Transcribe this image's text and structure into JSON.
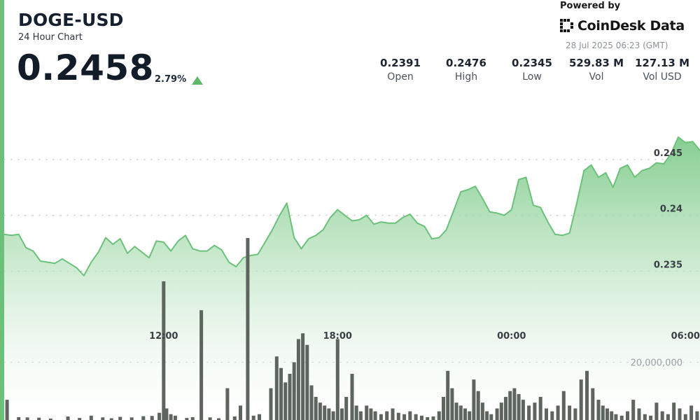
{
  "header": {
    "title": "DOGE-USD",
    "subtitle": "24 Hour Chart",
    "price": "0.2458",
    "change_pct": "2.79%",
    "change_direction": "up-arrow-icon"
  },
  "branding": {
    "powered_by": "Powered by",
    "brand": "CoinDesk Data",
    "timestamp": "28 Jul 2025 06:23 (GMT)",
    "logo_icon": "coindesk-logo-icon"
  },
  "stats": [
    {
      "value": "0.2391",
      "label": "Open"
    },
    {
      "value": "0.2476",
      "label": "High"
    },
    {
      "value": "0.2345",
      "label": "Low"
    },
    {
      "value": "529.83 M",
      "label": "Vol"
    },
    {
      "value": "127.13 M",
      "label": "Vol USD"
    }
  ],
  "colors": {
    "line": "#6cc17a",
    "area_top": "#7fcb8b",
    "area_bottom": "#ffffff",
    "volume_bar": "#5e645e",
    "grid": "#b8bcc0",
    "accent": "#5cb86a"
  },
  "chart_data": {
    "type": "area",
    "x_tick_labels": [
      "12:00",
      "18:00",
      "00:00",
      "06:00"
    ],
    "x_ticks_hours": [
      5.5,
      11.5,
      17.5,
      23.5
    ],
    "x_range_hours": [
      0,
      24.0
    ],
    "price_ylim": [
      0.2317,
      0.2505
    ],
    "price_ticks": [
      0.235,
      0.24,
      0.245
    ],
    "price_tick_labels": [
      "0.235",
      "0.24",
      "0.245"
    ],
    "volume_tick_label": "20,000,000",
    "volume_tick_value": 20000000,
    "volume_max": 63000000,
    "price_series": {
      "x": [
        0,
        0.25,
        0.5,
        0.75,
        1.0,
        1.25,
        1.5,
        1.75,
        2.0,
        2.25,
        2.5,
        2.75,
        3.0,
        3.25,
        3.5,
        3.75,
        4.0,
        4.25,
        4.5,
        4.75,
        5.0,
        5.25,
        5.5,
        5.75,
        6.0,
        6.25,
        6.5,
        6.75,
        7.0,
        7.25,
        7.5,
        7.75,
        8.0,
        8.25,
        8.5,
        8.75,
        9.0,
        9.25,
        9.5,
        9.75,
        10.0,
        10.25,
        10.5,
        10.75,
        11.0,
        11.25,
        11.5,
        11.75,
        12.0,
        12.25,
        12.5,
        12.75,
        13.0,
        13.25,
        13.5,
        13.75,
        14.0,
        14.25,
        14.5,
        14.75,
        15.0,
        15.25,
        15.5,
        15.75,
        16.0,
        16.25,
        16.5,
        16.75,
        17.0,
        17.25,
        17.5,
        17.75,
        18.0,
        18.25,
        18.5,
        18.75,
        19.0,
        19.25,
        19.5,
        19.75,
        20.0,
        20.25,
        20.5,
        20.75,
        21.0,
        21.25,
        21.5,
        21.75,
        22.0,
        22.25,
        22.5,
        22.75,
        23.0,
        23.25,
        23.5,
        23.75,
        24.0
      ],
      "y": [
        0.2383,
        0.2382,
        0.2383,
        0.2371,
        0.2368,
        0.2359,
        0.2358,
        0.2357,
        0.2361,
        0.2357,
        0.2353,
        0.2346,
        0.2358,
        0.2367,
        0.238,
        0.2374,
        0.2379,
        0.2366,
        0.2372,
        0.2367,
        0.2362,
        0.2377,
        0.2376,
        0.2368,
        0.2377,
        0.2382,
        0.237,
        0.2368,
        0.2368,
        0.2373,
        0.2369,
        0.2358,
        0.2354,
        0.2362,
        0.2364,
        0.2365,
        0.2376,
        0.2387,
        0.24,
        0.2411,
        0.238,
        0.237,
        0.2379,
        0.2382,
        0.2387,
        0.2398,
        0.2405,
        0.24,
        0.2395,
        0.2396,
        0.24,
        0.2392,
        0.2394,
        0.2393,
        0.2393,
        0.2398,
        0.2401,
        0.2393,
        0.239,
        0.2379,
        0.238,
        0.2387,
        0.2404,
        0.2421,
        0.2423,
        0.2426,
        0.2415,
        0.2403,
        0.2402,
        0.24,
        0.2405,
        0.2432,
        0.2434,
        0.2409,
        0.2407,
        0.2394,
        0.2383,
        0.2382,
        0.2384,
        0.2411,
        0.244,
        0.2445,
        0.2434,
        0.2438,
        0.2425,
        0.2442,
        0.2445,
        0.2434,
        0.244,
        0.2442,
        0.2447,
        0.2446,
        0.2455,
        0.247,
        0.2465,
        0.2466,
        0.2458
      ]
    },
    "volume_series": {
      "x": [
        0.1,
        0.5,
        0.8,
        1.2,
        1.6,
        2.2,
        2.6,
        3.0,
        3.4,
        3.7,
        4.0,
        4.4,
        4.8,
        5.1,
        5.35,
        5.5,
        5.6,
        5.75,
        5.9,
        6.3,
        6.5,
        6.8,
        7.1,
        7.4,
        7.7,
        7.95,
        8.15,
        8.4,
        8.6,
        8.8,
        9.2,
        9.4,
        9.55,
        9.7,
        9.85,
        10.0,
        10.15,
        10.3,
        10.45,
        10.6,
        10.75,
        10.9,
        11.05,
        11.2,
        11.35,
        11.5,
        11.65,
        11.8,
        12.0,
        12.15,
        12.3,
        12.5,
        12.65,
        12.8,
        13.0,
        13.2,
        13.4,
        13.6,
        13.8,
        14.0,
        14.2,
        14.4,
        14.6,
        14.8,
        15.0,
        15.15,
        15.3,
        15.45,
        15.6,
        15.75,
        15.9,
        16.05,
        16.2,
        16.35,
        16.5,
        16.65,
        16.8,
        17.0,
        17.15,
        17.3,
        17.45,
        17.6,
        17.75,
        17.9,
        18.1,
        18.3,
        18.5,
        18.7,
        18.9,
        19.1,
        19.3,
        19.5,
        19.7,
        19.9,
        20.1,
        20.3,
        20.5,
        20.65,
        20.8,
        20.95,
        21.1,
        21.3,
        21.5,
        21.7,
        21.9,
        22.1,
        22.3,
        22.5,
        22.7,
        22.9,
        23.1,
        23.3,
        23.5,
        23.7,
        23.9
      ],
      "y": [
        7000000,
        1000000,
        900000,
        800000,
        500000,
        1200000,
        700000,
        1500000,
        900000,
        600000,
        1100000,
        900000,
        1300000,
        1400000,
        2500000,
        48000000,
        4000000,
        2000000,
        1500000,
        700000,
        1000000,
        38000000,
        900000,
        600000,
        11000000,
        1200000,
        5000000,
        63000000,
        1500000,
        2000000,
        11000000,
        22000000,
        18000000,
        13000000,
        16000000,
        20000000,
        28000000,
        30000000,
        26000000,
        12000000,
        8000000,
        6000000,
        5000000,
        4000000,
        3000000,
        28000000,
        4000000,
        8000000,
        16000000,
        5000000,
        3000000,
        5000000,
        4000000,
        3000000,
        2000000,
        3000000,
        4000000,
        2500000,
        2000000,
        3000000,
        2000000,
        1500000,
        1000000,
        1200000,
        3000000,
        8000000,
        17000000,
        11000000,
        6000000,
        5000000,
        4000000,
        3000000,
        14000000,
        10000000,
        6000000,
        3000000,
        2000000,
        4000000,
        6000000,
        8000000,
        10000000,
        11000000,
        9000000,
        7000000,
        5000000,
        6000000,
        8000000,
        4000000,
        3000000,
        5000000,
        10000000,
        5000000,
        4000000,
        14000000,
        17000000,
        11000000,
        7000000,
        5000000,
        4000000,
        3000000,
        2000000,
        1500000,
        3000000,
        7000000,
        4000000,
        2000000,
        1500000,
        6000000,
        3000000,
        2000000,
        6000000,
        4000000,
        2000000,
        5000000,
        3000000
      ]
    }
  }
}
